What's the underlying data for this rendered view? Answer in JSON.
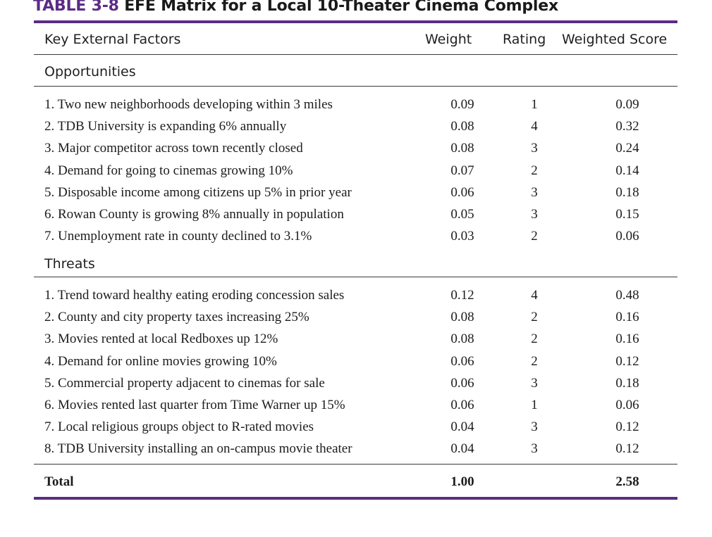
{
  "title": {
    "number": "TABLE 3-8",
    "text": "EFE Matrix for a Local 10-Theater Cinema Complex"
  },
  "headers": {
    "factor": "Key External Factors",
    "weight": "Weight",
    "rating": "Rating",
    "score": "Weighted Score"
  },
  "opportunities": {
    "label": "Opportunities",
    "rows": [
      {
        "factor": "1. Two new neighborhoods developing within 3 miles",
        "weight": "0.09",
        "rating": "1",
        "score": "0.09"
      },
      {
        "factor": "2. TDB University is expanding 6% annually",
        "weight": "0.08",
        "rating": "4",
        "score": "0.32"
      },
      {
        "factor": "3. Major competitor across town recently closed",
        "weight": "0.08",
        "rating": "3",
        "score": "0.24"
      },
      {
        "factor": "4. Demand for going to cinemas growing 10%",
        "weight": "0.07",
        "rating": "2",
        "score": "0.14"
      },
      {
        "factor": "5. Disposable income among citizens up 5% in prior year",
        "weight": "0.06",
        "rating": "3",
        "score": "0.18"
      },
      {
        "factor": "6. Rowan County is growing 8% annually in population",
        "weight": "0.05",
        "rating": "3",
        "score": "0.15"
      },
      {
        "factor": "7. Unemployment rate in county declined to 3.1%",
        "weight": "0.03",
        "rating": "2",
        "score": "0.06"
      }
    ]
  },
  "threats": {
    "label": "Threats",
    "rows": [
      {
        "factor": "1. Trend toward healthy eating eroding concession sales",
        "weight": "0.12",
        "rating": "4",
        "score": "0.48"
      },
      {
        "factor": "2. County and city property taxes increasing 25%",
        "weight": "0.08",
        "rating": "2",
        "score": "0.16"
      },
      {
        "factor": "3. Movies rented at local Redboxes up 12%",
        "weight": "0.08",
        "rating": "2",
        "score": "0.16"
      },
      {
        "factor": "4. Demand for online movies growing 10%",
        "weight": "0.06",
        "rating": "2",
        "score": "0.12"
      },
      {
        "factor": "5. Commercial property adjacent to cinemas for sale",
        "weight": "0.06",
        "rating": "3",
        "score": "0.18"
      },
      {
        "factor": "6. Movies rented last quarter from Time Warner up 15%",
        "weight": "0.06",
        "rating": "1",
        "score": "0.06"
      },
      {
        "factor": "7. Local religious groups object to R-rated movies",
        "weight": "0.04",
        "rating": "3",
        "score": "0.12"
      },
      {
        "factor": "8. TDB University installing an on-campus movie theater",
        "weight": "0.04",
        "rating": "3",
        "score": "0.12"
      }
    ]
  },
  "total": {
    "label": "Total",
    "weight": "1.00",
    "score": "2.58"
  },
  "colors": {
    "accent": "#5b2c86",
    "text": "#1c1c1c"
  }
}
